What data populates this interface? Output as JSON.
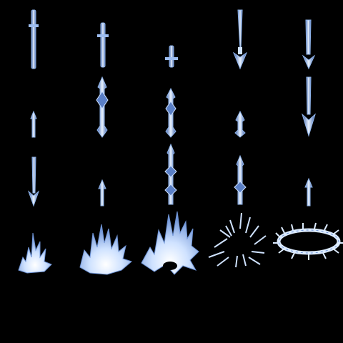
{
  "sprite_sheet": {
    "background": "#000000",
    "palette": {
      "outline": "#8fb4ea",
      "body": "#5a7fc6",
      "core": "#eef6ff",
      "glow": "#b8d2ff"
    },
    "rows": [
      {
        "name": "sword-descend",
        "frames": [
          "sword-long",
          "sword-short",
          "sword-stub",
          "arrow-spear-down",
          "arrow-spear-down-wide"
        ]
      },
      {
        "name": "ornate-spike",
        "frames": [
          "small-spike",
          "ornate-spike-tall",
          "ornate-spike-mid",
          "ornate-spike-small",
          "arrow-down-long"
        ]
      },
      {
        "name": "barbed-lance",
        "frames": [
          "barbed-arrow-down",
          "small-spike-up",
          "barbed-lance-tall",
          "barbed-lance-mid",
          "small-spike-stub"
        ]
      },
      {
        "name": "ice-burst",
        "frames": [
          "burst-small",
          "burst-medium",
          "burst-large",
          "burst-scatter",
          "frost-ring"
        ]
      }
    ]
  }
}
